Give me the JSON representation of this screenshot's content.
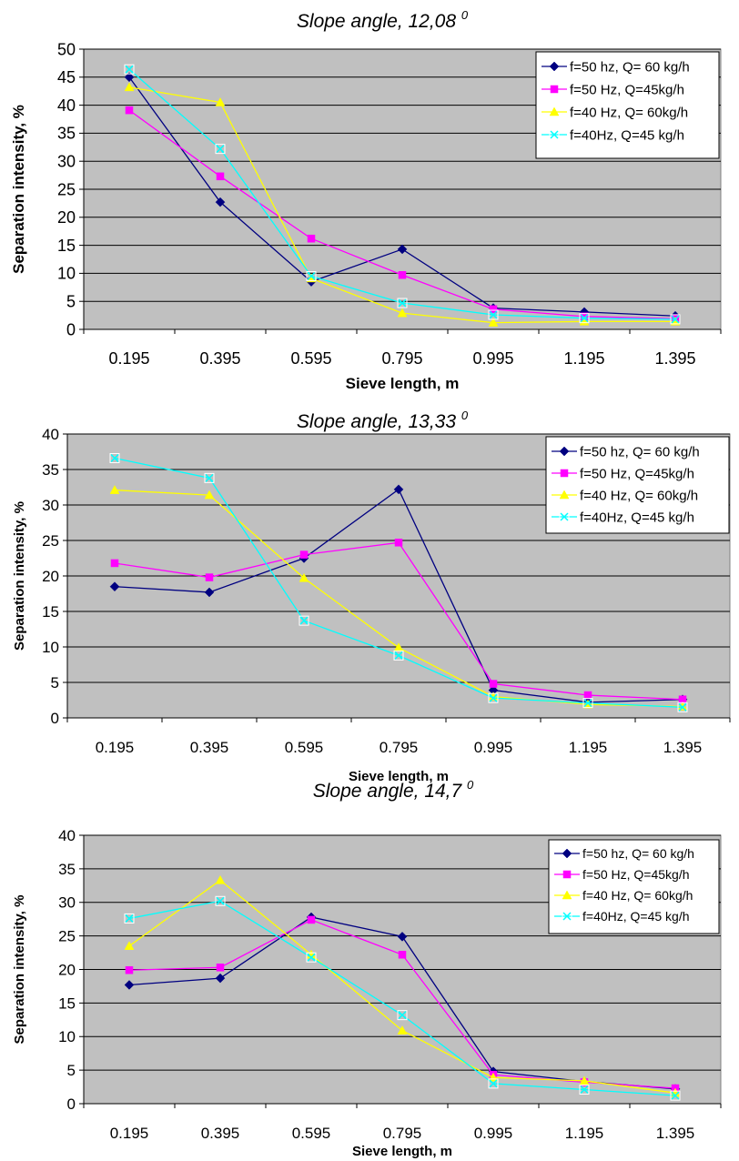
{
  "chart_data": [
    {
      "type": "line",
      "title": "Slope angle, 12,08",
      "title_superscript": "0",
      "xlabel": "Sieve length, m",
      "ylabel": "Separation intensity, %",
      "categories": [
        "0.195",
        "0.395",
        "0.595",
        "0.795",
        "0.995",
        "1.195",
        "1.395"
      ],
      "ylim": [
        0,
        50
      ],
      "ytick_step": 5,
      "grid": true,
      "legend_position": "top-right",
      "series": [
        {
          "name": "f=50 hz, Q= 60 kg/h",
          "color": "#000080",
          "marker": "diamond",
          "values": [
            45,
            22.7,
            8.5,
            14.3,
            3.8,
            3.1,
            2.4
          ]
        },
        {
          "name": "f=50 Hz, Q=45kg/h",
          "color": "#ff00ff",
          "marker": "square",
          "values": [
            39.1,
            27.3,
            16.2,
            9.7,
            3.6,
            2.3,
            1.9
          ]
        },
        {
          "name": "f=40 Hz, Q= 60kg/h",
          "color": "#ffff00",
          "marker": "triangle",
          "values": [
            43.2,
            40.5,
            9.1,
            2.9,
            1.2,
            1.4,
            1.4
          ]
        },
        {
          "name": "f=40Hz, Q=45 kg/h",
          "color": "#00ffff",
          "marker": "x",
          "values": [
            46.4,
            32.2,
            9.5,
            4.7,
            2.6,
            2.0,
            1.8
          ]
        }
      ]
    },
    {
      "type": "line",
      "title": "Slope angle, 13,33",
      "title_superscript": "0",
      "xlabel": "Sieve length, m",
      "ylabel": "Separation intensity, %",
      "categories": [
        "0.195",
        "0.395",
        "0.595",
        "0.795",
        "0.995",
        "1.195",
        "1.395"
      ],
      "ylim": [
        0,
        40
      ],
      "ytick_step": 5,
      "grid": true,
      "legend_position": "top-right",
      "series": [
        {
          "name": "f=50 hz, Q= 60 kg/h",
          "color": "#000080",
          "marker": "diamond",
          "values": [
            18.5,
            17.7,
            22.5,
            32.2,
            3.9,
            2.2,
            2.6
          ]
        },
        {
          "name": "f=50 Hz, Q=45kg/h",
          "color": "#ff00ff",
          "marker": "square",
          "values": [
            21.8,
            19.8,
            23.0,
            24.7,
            4.8,
            3.2,
            2.6
          ]
        },
        {
          "name": "f=40 Hz, Q= 60kg/h",
          "color": "#ffff00",
          "marker": "triangle",
          "values": [
            32.1,
            31.4,
            19.7,
            9.9,
            3.0,
            1.9,
            1.6
          ]
        },
        {
          "name": "f=40Hz, Q=45 kg/h",
          "color": "#00ffff",
          "marker": "x",
          "values": [
            36.6,
            33.8,
            13.7,
            8.8,
            2.8,
            2.1,
            1.5
          ]
        }
      ]
    },
    {
      "type": "line",
      "title": "Slope angle, 14,7",
      "title_superscript": "0",
      "xlabel": "Sieve length, m",
      "ylabel": "Separation intensity, %",
      "categories": [
        "0.195",
        "0.395",
        "0.595",
        "0.795",
        "0.995",
        "1.195",
        "1.395"
      ],
      "ylim": [
        0,
        40
      ],
      "ytick_step": 5,
      "grid": true,
      "legend_position": "top-right",
      "series": [
        {
          "name": "f=50 hz, Q= 60 kg/h",
          "color": "#000080",
          "marker": "diamond",
          "values": [
            17.7,
            18.7,
            27.8,
            24.9,
            4.8,
            3.3,
            2.2
          ]
        },
        {
          "name": "f=50 Hz, Q=45kg/h",
          "color": "#ff00ff",
          "marker": "square",
          "values": [
            19.9,
            20.3,
            27.4,
            22.2,
            4.3,
            3.2,
            2.3
          ]
        },
        {
          "name": "f=40 Hz, Q= 60kg/h",
          "color": "#ffff00",
          "marker": "triangle",
          "values": [
            23.5,
            33.3,
            22.2,
            10.9,
            3.9,
            3.4,
            1.6
          ]
        },
        {
          "name": "f=40Hz, Q=45 kg/h",
          "color": "#00ffff",
          "marker": "x",
          "values": [
            27.6,
            30.2,
            21.8,
            13.2,
            3.0,
            2.1,
            1.2
          ]
        }
      ]
    }
  ],
  "colors": {
    "plot_background": "#c0c0c0",
    "gridline": "#000000",
    "page_background": "#ffffff"
  }
}
